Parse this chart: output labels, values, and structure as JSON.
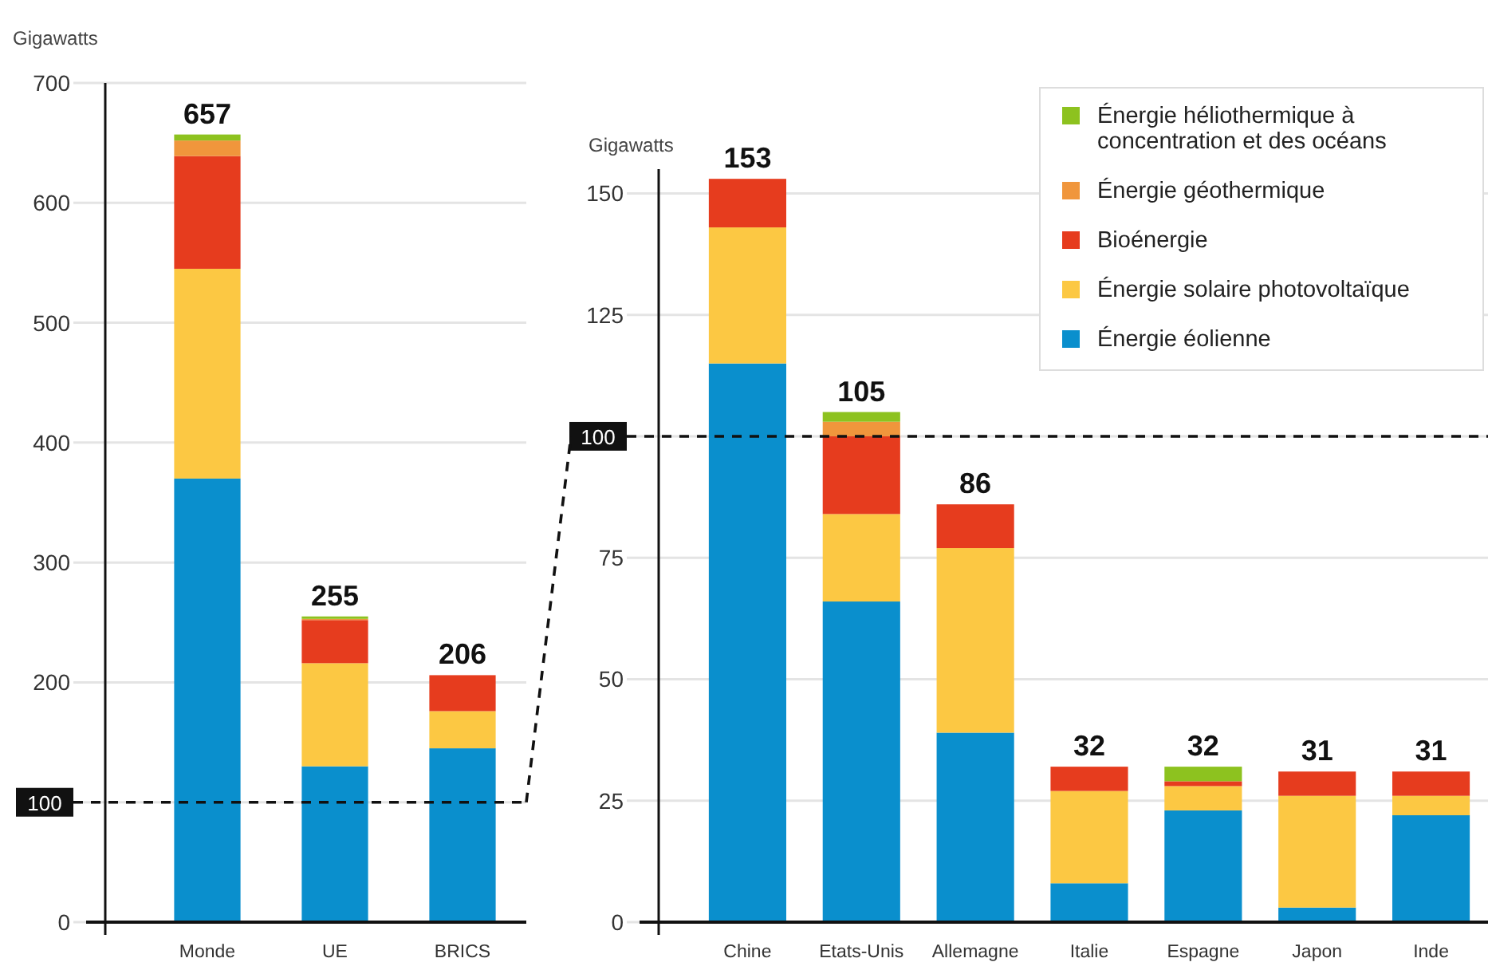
{
  "chart_data": [
    {
      "type": "bar",
      "stacked": true,
      "ylabel": "Gigawatts",
      "categories": [
        "Monde",
        "UE",
        "BRICS"
      ],
      "series": [
        {
          "color": "#0a8fcd",
          "values": [
            370,
            130,
            145
          ]
        },
        {
          "color": "#fcc843",
          "values": [
            175,
            86,
            31
          ]
        },
        {
          "color": "#e63c1e",
          "values": [
            94,
            36,
            30
          ]
        },
        {
          "color": "#f0963c",
          "values": [
            13,
            1,
            0
          ]
        },
        {
          "color": "#8dc21f",
          "values": [
            5,
            2,
            0
          ]
        }
      ],
      "totals": [
        "657",
        "255",
        "206"
      ],
      "ylim": [
        0,
        700
      ],
      "yticks": [
        0,
        {
          "value": 100,
          "label": null
        },
        200,
        300,
        400,
        500,
        600,
        700
      ],
      "grid": "y",
      "legend": false,
      "ref_lines": [
        {
          "axis": "y",
          "value": 100,
          "label": "100",
          "line_style": "dashed",
          "color": "#111111"
        }
      ]
    },
    {
      "type": "bar",
      "stacked": true,
      "ylabel": "Gigawatts",
      "categories": [
        "Chine",
        "Etats-Unis",
        "Allemagne",
        "Italie",
        "Espagne",
        "Japon",
        "Inde"
      ],
      "series": [
        {
          "name": "Énergie éolienne",
          "color": "#0a8fcd",
          "values": [
            115,
            66,
            39,
            8,
            23,
            3,
            22
          ]
        },
        {
          "name": "Énergie solaire photovoltaïque",
          "color": "#fcc843",
          "values": [
            28,
            18,
            38,
            19,
            5,
            23,
            4
          ]
        },
        {
          "name": "Bioénergie",
          "color": "#e63c1e",
          "values": [
            10,
            16,
            9,
            5,
            1,
            5,
            5
          ]
        },
        {
          "name": "Énergie géothermique",
          "color": "#f0963c",
          "values": [
            0,
            3,
            0,
            0,
            0,
            0,
            0
          ]
        },
        {
          "name": "Énergie héliothermique à concentration et des océans",
          "color": "#8dc21f",
          "values": [
            0,
            2,
            0,
            0,
            3,
            0,
            0
          ]
        }
      ],
      "totals": [
        "153",
        "105",
        "86",
        "32",
        "32",
        "31",
        "31"
      ],
      "ylim": [
        0,
        155
      ],
      "yticks": [
        0,
        25,
        50,
        75,
        {
          "value": 100,
          "label": null
        },
        125,
        150
      ],
      "grid": "y",
      "legend": "top right",
      "ref_lines": [
        {
          "axis": "y",
          "value": 100,
          "label": "100",
          "line_style": "dashed",
          "color": "#111111"
        }
      ]
    }
  ]
}
